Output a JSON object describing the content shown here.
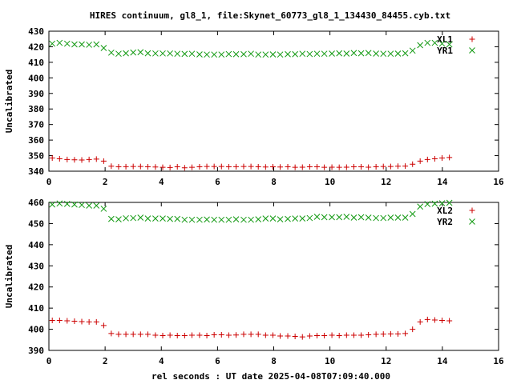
{
  "figure": {
    "title": "HIRES continuum, gl8_1, file:Skynet_60773_gl8_1_134430_84455.cyb.txt",
    "xlabel": "rel seconds : UT date 2025-04-08T07:09:40.000"
  },
  "colors": {
    "red_series": "#cc0000",
    "green_series": "#119911",
    "frame": "#000000"
  },
  "chart_data": [
    {
      "type": "scatter",
      "title": "",
      "xlabel": "",
      "ylabel": "Uncalibrated",
      "xlim": [
        0,
        16
      ],
      "ylim": [
        340,
        430
      ],
      "xticks": [
        0,
        2,
        4,
        6,
        8,
        10,
        12,
        14,
        16
      ],
      "yticks": [
        340,
        350,
        360,
        370,
        380,
        390,
        400,
        410,
        420,
        430
      ],
      "grid": false,
      "legend_position": "top-right",
      "series": [
        {
          "name": "XL1",
          "marker": "plus",
          "x": [
            0.12,
            0.38,
            0.65,
            0.91,
            1.17,
            1.43,
            1.69,
            1.95,
            2.22,
            2.48,
            2.74,
            3.0,
            3.26,
            3.52,
            3.79,
            4.05,
            4.31,
            4.57,
            4.83,
            5.09,
            5.36,
            5.62,
            5.88,
            6.14,
            6.4,
            6.66,
            6.93,
            7.19,
            7.45,
            7.71,
            7.97,
            8.23,
            8.5,
            8.76,
            9.02,
            9.28,
            9.54,
            9.8,
            10.07,
            10.33,
            10.59,
            10.85,
            11.11,
            11.37,
            11.64,
            11.9,
            12.16,
            12.42,
            12.68,
            12.94,
            13.21,
            13.47,
            13.73,
            13.99,
            14.25
          ],
          "y": [
            348.5,
            348,
            347.5,
            347.3,
            347.2,
            347.5,
            347.8,
            346.5,
            343.2,
            342.8,
            342.9,
            343.0,
            343.0,
            342.8,
            342.7,
            342.5,
            342.4,
            342.8,
            342.2,
            342.5,
            342.8,
            343.0,
            343.0,
            343.0,
            342.8,
            342.9,
            343.0,
            343.0,
            342.8,
            342.7,
            342.8,
            342.7,
            342.8,
            342.5,
            342.6,
            342.8,
            342.8,
            342.5,
            342.6,
            342.5,
            342.6,
            342.8,
            342.8,
            342.6,
            342.8,
            343.0,
            343.0,
            343.2,
            343.3,
            344.5,
            346.5,
            347.5,
            348.0,
            348.5,
            348.8
          ]
        },
        {
          "name": "YR1",
          "marker": "x",
          "x": [
            0.12,
            0.38,
            0.65,
            0.91,
            1.17,
            1.43,
            1.69,
            1.95,
            2.22,
            2.48,
            2.74,
            3.0,
            3.26,
            3.52,
            3.79,
            4.05,
            4.31,
            4.57,
            4.83,
            5.09,
            5.36,
            5.62,
            5.88,
            6.14,
            6.4,
            6.66,
            6.93,
            7.19,
            7.45,
            7.71,
            7.97,
            8.23,
            8.5,
            8.76,
            9.02,
            9.28,
            9.54,
            9.8,
            10.07,
            10.33,
            10.59,
            10.85,
            11.11,
            11.37,
            11.64,
            11.9,
            12.16,
            12.42,
            12.68,
            12.94,
            13.21,
            13.47,
            13.73,
            13.99,
            14.25
          ],
          "y": [
            422,
            422.5,
            422,
            421.5,
            421.5,
            421.3,
            421.5,
            419.2,
            416.2,
            415.5,
            415.8,
            416.3,
            416.5,
            415.8,
            415.7,
            415.7,
            415.7,
            415.5,
            415.4,
            415.5,
            415.1,
            415.0,
            415.0,
            415.0,
            415.3,
            415.2,
            415.2,
            415.5,
            415.0,
            415.0,
            415.1,
            415.0,
            415.2,
            415.2,
            415.5,
            415.3,
            415.5,
            415.5,
            415.6,
            415.8,
            415.6,
            416.0,
            415.8,
            416.0,
            415.6,
            415.5,
            415.5,
            415.6,
            415.8,
            417.5,
            421.0,
            422.5,
            422.5,
            422.0,
            421.5
          ]
        }
      ]
    },
    {
      "type": "scatter",
      "title": "",
      "xlabel": "rel seconds : UT date 2025-04-08T07:09:40.000",
      "ylabel": "Uncalibrated",
      "xlim": [
        0,
        16
      ],
      "ylim": [
        390,
        460
      ],
      "xticks": [
        0,
        2,
        4,
        6,
        8,
        10,
        12,
        14,
        16
      ],
      "yticks": [
        390,
        400,
        410,
        420,
        430,
        440,
        450,
        460
      ],
      "grid": false,
      "legend_position": "top-right",
      "series": [
        {
          "name": "XL2",
          "marker": "plus",
          "x": [
            0.12,
            0.38,
            0.65,
            0.91,
            1.17,
            1.43,
            1.69,
            1.95,
            2.22,
            2.48,
            2.74,
            3.0,
            3.26,
            3.52,
            3.79,
            4.05,
            4.31,
            4.57,
            4.83,
            5.09,
            5.36,
            5.62,
            5.88,
            6.14,
            6.4,
            6.66,
            6.93,
            7.19,
            7.45,
            7.71,
            7.97,
            8.23,
            8.5,
            8.76,
            9.02,
            9.28,
            9.54,
            9.8,
            10.07,
            10.33,
            10.59,
            10.85,
            11.11,
            11.37,
            11.64,
            11.9,
            12.16,
            12.42,
            12.68,
            12.94,
            13.21,
            13.47,
            13.73,
            13.99,
            14.25
          ],
          "y": [
            404.2,
            404.2,
            404.0,
            403.8,
            403.6,
            403.5,
            403.5,
            401.8,
            398.0,
            397.6,
            397.6,
            397.6,
            397.6,
            397.6,
            397.2,
            397.0,
            397.2,
            397.0,
            397.0,
            397.2,
            397.2,
            397.0,
            397.4,
            397.4,
            397.2,
            397.3,
            397.6,
            397.6,
            397.6,
            397.2,
            397.2,
            396.8,
            396.8,
            396.6,
            396.4,
            396.8,
            397.0,
            397.0,
            397.2,
            397.0,
            397.2,
            397.2,
            397.2,
            397.4,
            397.6,
            397.7,
            397.8,
            397.8,
            398.0,
            400.0,
            403.5,
            404.6,
            404.4,
            404.2,
            404.0
          ]
        },
        {
          "name": "YR2",
          "marker": "x",
          "x": [
            0.12,
            0.38,
            0.65,
            0.91,
            1.17,
            1.43,
            1.69,
            1.95,
            2.22,
            2.48,
            2.74,
            3.0,
            3.26,
            3.52,
            3.79,
            4.05,
            4.31,
            4.57,
            4.83,
            5.09,
            5.36,
            5.62,
            5.88,
            6.14,
            6.4,
            6.66,
            6.93,
            7.19,
            7.45,
            7.71,
            7.97,
            8.23,
            8.5,
            8.76,
            9.02,
            9.28,
            9.54,
            9.8,
            10.07,
            10.33,
            10.59,
            10.85,
            11.11,
            11.37,
            11.64,
            11.9,
            12.16,
            12.42,
            12.68,
            12.94,
            13.21,
            13.47,
            13.73,
            13.99,
            14.25
          ],
          "y": [
            459.0,
            459.5,
            459.3,
            459.0,
            458.8,
            458.5,
            458.5,
            457.0,
            452.2,
            452.0,
            452.5,
            452.6,
            452.8,
            452.4,
            452.4,
            452.4,
            452.2,
            452.2,
            451.8,
            451.8,
            451.8,
            451.9,
            451.8,
            451.8,
            451.8,
            452.0,
            451.8,
            451.8,
            452.0,
            452.4,
            452.4,
            452.0,
            452.2,
            452.4,
            452.4,
            452.6,
            453.2,
            453.0,
            453.0,
            453.0,
            453.2,
            452.8,
            453.0,
            452.8,
            452.6,
            452.6,
            452.8,
            452.8,
            452.8,
            454.5,
            458.0,
            459.2,
            459.4,
            459.6,
            459.8
          ]
        }
      ]
    }
  ]
}
